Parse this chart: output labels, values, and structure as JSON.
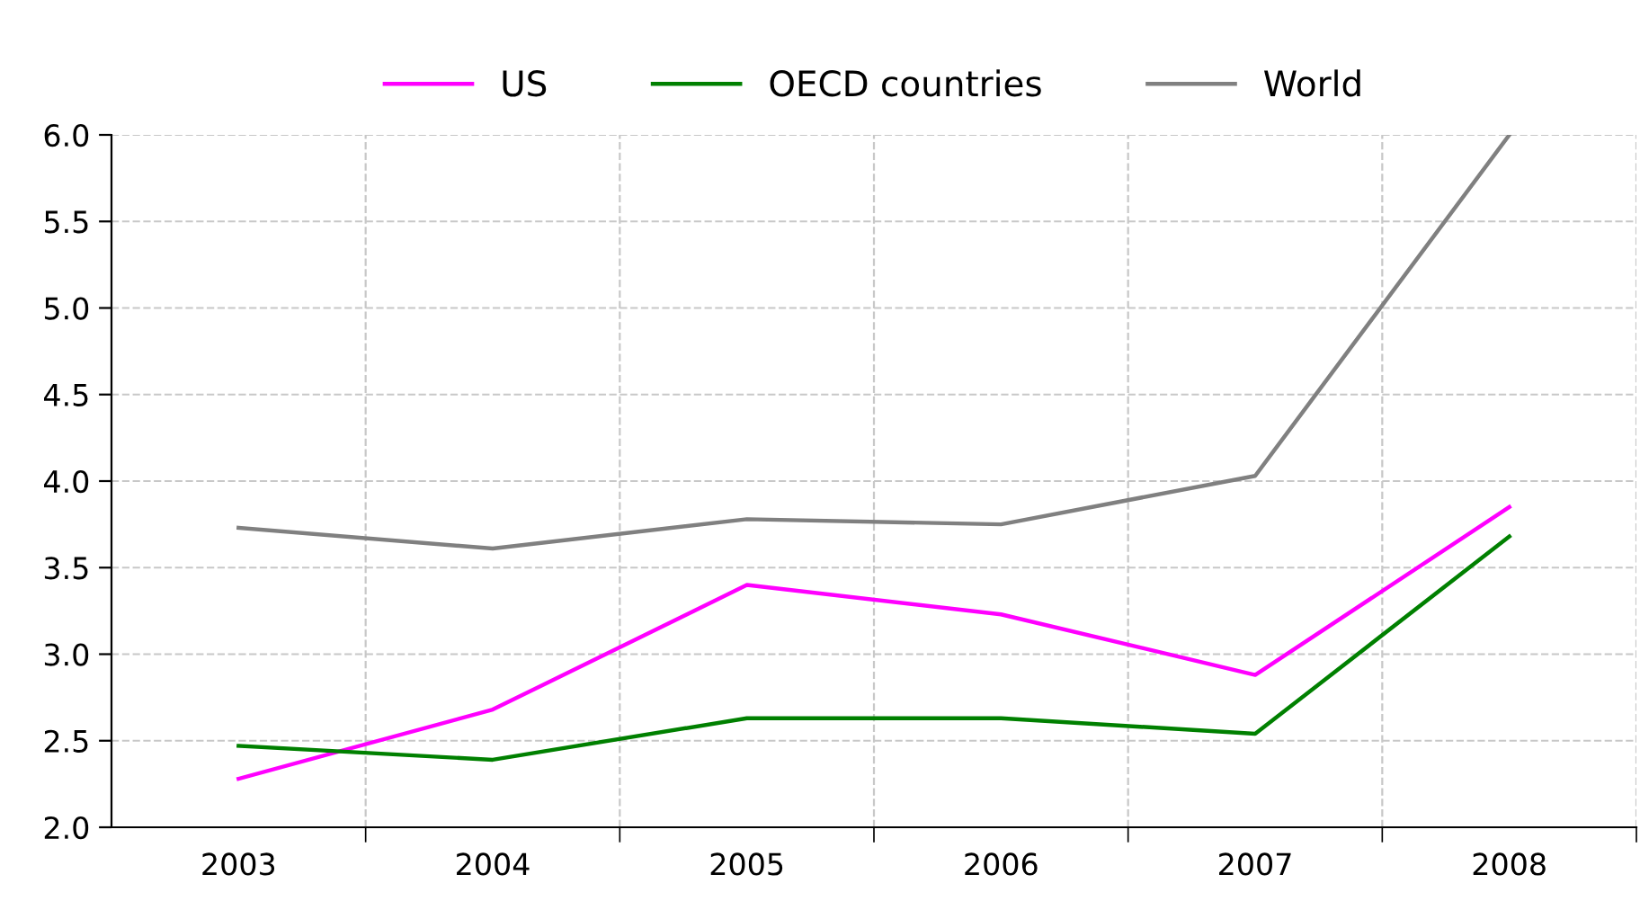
{
  "chart_data": {
    "type": "line",
    "categories": [
      "2003",
      "2004",
      "2005",
      "2006",
      "2007",
      "2008"
    ],
    "series": [
      {
        "name": "US",
        "color": "#ff00ff",
        "values": [
          2.28,
          2.68,
          3.4,
          3.23,
          2.88,
          3.85
        ]
      },
      {
        "name": "OECD countries",
        "color": "#008000",
        "values": [
          2.47,
          2.39,
          2.63,
          2.63,
          2.54,
          3.68
        ]
      },
      {
        "name": "World",
        "color": "#808080",
        "values": [
          3.73,
          3.61,
          3.78,
          3.75,
          4.03,
          6.0
        ]
      }
    ],
    "ylim": [
      2.0,
      6.0
    ],
    "yticks": [
      {
        "value": 2.0,
        "label": "2.0"
      },
      {
        "value": 2.5,
        "label": "2.5"
      },
      {
        "value": 3.0,
        "label": "3.0"
      },
      {
        "value": 3.5,
        "label": "3.5"
      },
      {
        "value": 4.0,
        "label": "4.0"
      },
      {
        "value": 4.5,
        "label": "4.5"
      },
      {
        "value": 5.0,
        "label": "5.0"
      },
      {
        "value": 5.5,
        "label": "5.5"
      },
      {
        "value": 6.0,
        "label": "6.0"
      }
    ],
    "grid": true,
    "legend": "top",
    "marker": "none",
    "line_style": "solid"
  }
}
